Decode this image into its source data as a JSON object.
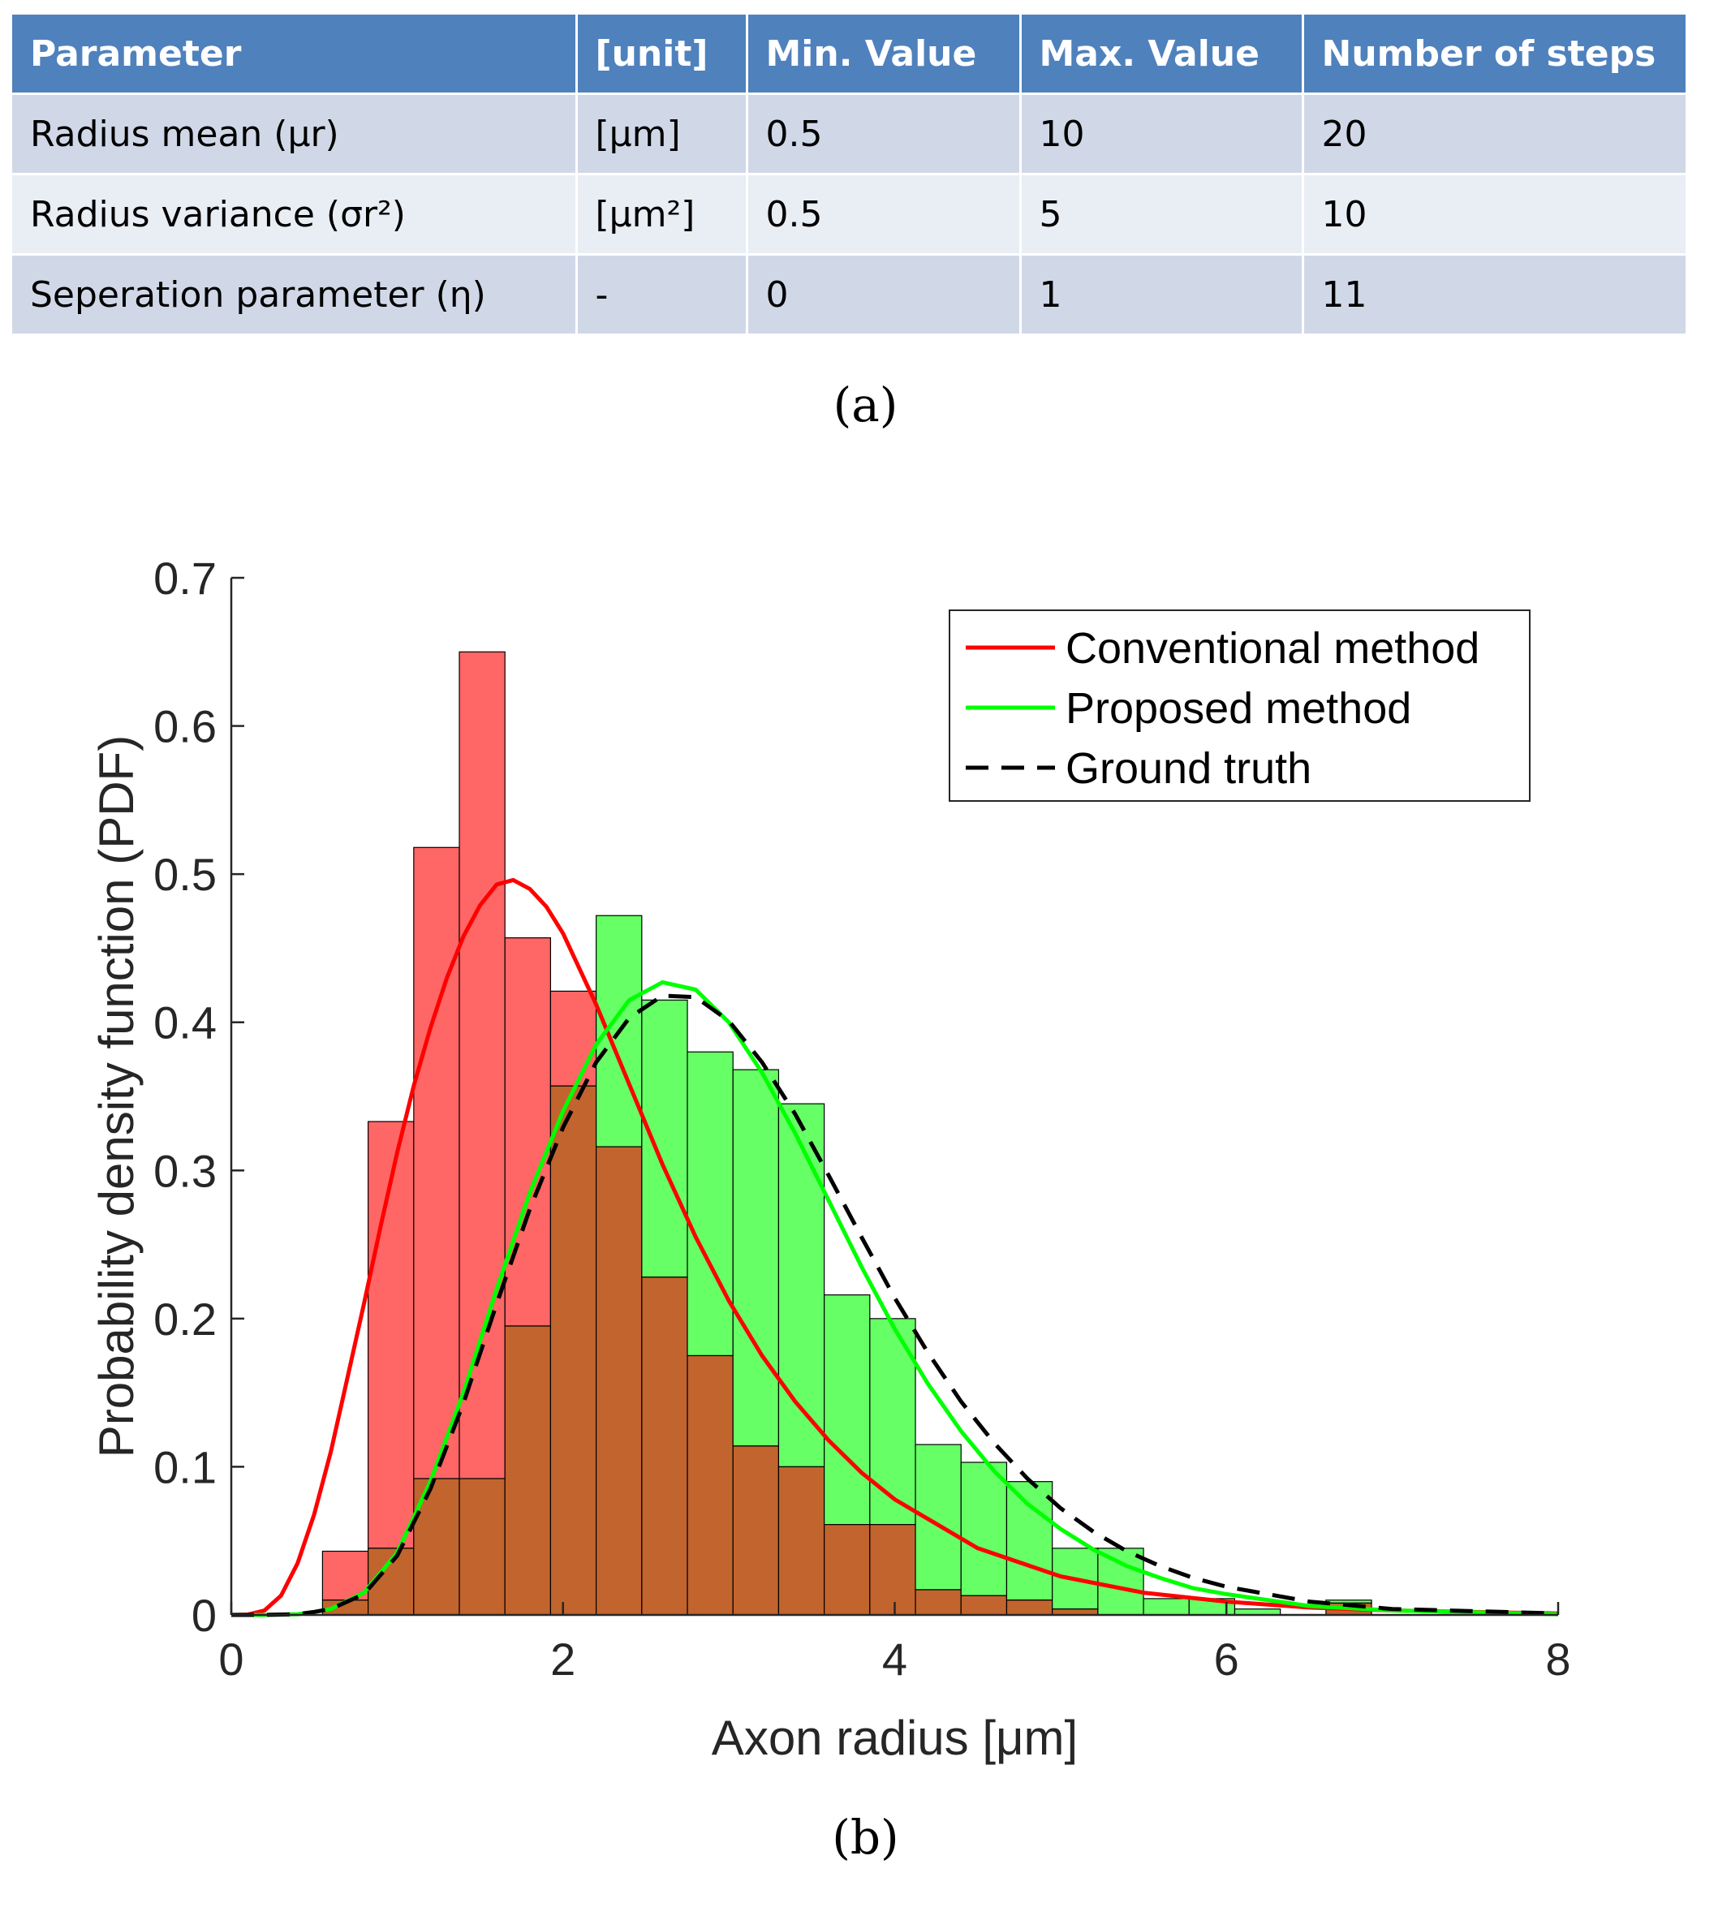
{
  "table": {
    "headers": [
      "Parameter",
      "[unit]",
      "Min. Value",
      "Max. Value",
      "Number of steps"
    ],
    "rows": [
      {
        "parameter": "Radius mean (μr)",
        "unit": "[μm]",
        "min": "0.5",
        "max": "10",
        "steps": "20"
      },
      {
        "parameter": "Radius variance (σr²)",
        "unit": "[μm²]",
        "min": "0.5",
        "max": "5",
        "steps": "10"
      },
      {
        "parameter": "Seperation parameter (η)",
        "unit": "-",
        "min": "0",
        "max": "1",
        "steps": "11"
      }
    ]
  },
  "captions": {
    "a": "(a)",
    "b": "(b)"
  },
  "colors": {
    "table_header": "#4f81bd",
    "conventional": "#ff0000",
    "proposed": "#00ff00",
    "ground_truth": "#000000",
    "red_bars": "#ff6666",
    "green_bars": "#66ff66",
    "overlap_bars": "#c2642e"
  },
  "chart_data": {
    "type": "bar",
    "title": "",
    "xlabel": "Axon radius [μm]",
    "ylabel": "Probability density function (PDF)",
    "xlim": [
      0,
      8
    ],
    "ylim": [
      0,
      0.7
    ],
    "xticks": [
      "0",
      "2",
      "4",
      "6",
      "8"
    ],
    "yticks": [
      "0",
      "0.1",
      "0.2",
      "0.3",
      "0.4",
      "0.5",
      "0.6",
      "0.7"
    ],
    "bin_edges": [
      0.55,
      0.825,
      1.1,
      1.375,
      1.65,
      1.925,
      2.2,
      2.475,
      2.75,
      3.025,
      3.3,
      3.575,
      3.85,
      4.125,
      4.4,
      4.675,
      4.95,
      5.225,
      5.5,
      5.775,
      6.05,
      6.325,
      6.6,
      6.875
    ],
    "histograms": [
      {
        "name": "Conventional method histogram",
        "values": [
          0.043,
          0.333,
          0.518,
          0.65,
          0.457,
          0.421,
          0.316,
          0.228,
          0.175,
          0.114,
          0.1,
          0.061,
          0.061,
          0.017,
          0.013,
          0.01,
          0.004,
          0,
          0,
          0,
          0,
          0,
          0.008
        ]
      },
      {
        "name": "Proposed method histogram",
        "values": [
          0.01,
          0.045,
          0.092,
          0.092,
          0.195,
          0.357,
          0.472,
          0.415,
          0.38,
          0.368,
          0.345,
          0.216,
          0.2,
          0.115,
          0.103,
          0.09,
          0.045,
          0.045,
          0.011,
          0.011,
          0.004,
          0,
          0.01
        ]
      }
    ],
    "series": [
      {
        "name": "Conventional method",
        "type": "lognormal-pdf",
        "peak_x": 1.64,
        "peak_y": 0.497,
        "x": [
          0,
          0.1,
          0.2,
          0.3,
          0.4,
          0.5,
          0.6,
          0.7,
          0.8,
          0.9,
          1.0,
          1.1,
          1.2,
          1.3,
          1.4,
          1.5,
          1.6,
          1.7,
          1.8,
          1.9,
          2.0,
          2.2,
          2.4,
          2.6,
          2.8,
          3.0,
          3.2,
          3.4,
          3.6,
          3.8,
          4.0,
          4.5,
          5.0,
          5.5,
          6.0,
          6.5,
          7.0,
          8.0
        ],
        "values": [
          0,
          0.0002,
          0.003,
          0.013,
          0.035,
          0.068,
          0.11,
          0.16,
          0.21,
          0.262,
          0.312,
          0.357,
          0.396,
          0.43,
          0.458,
          0.479,
          0.493,
          0.496,
          0.49,
          0.478,
          0.46,
          0.412,
          0.358,
          0.304,
          0.255,
          0.212,
          0.175,
          0.144,
          0.118,
          0.096,
          0.078,
          0.045,
          0.026,
          0.015,
          0.009,
          0.005,
          0.003,
          0.001
        ]
      },
      {
        "name": "Proposed method",
        "type": "lognormal-pdf",
        "peak_x": 2.62,
        "peak_y": 0.427,
        "x": [
          0,
          0.2,
          0.4,
          0.5,
          0.6,
          0.8,
          1.0,
          1.2,
          1.4,
          1.6,
          1.8,
          2.0,
          2.2,
          2.4,
          2.6,
          2.8,
          3.0,
          3.2,
          3.4,
          3.6,
          3.8,
          4.0,
          4.2,
          4.4,
          4.6,
          4.8,
          5.0,
          5.2,
          5.4,
          5.6,
          5.8,
          6.0,
          6.5,
          7.0,
          8.0
        ],
        "values": [
          0,
          0,
          0.0005,
          0.002,
          0.004,
          0.015,
          0.042,
          0.09,
          0.15,
          0.22,
          0.285,
          0.34,
          0.385,
          0.415,
          0.427,
          0.422,
          0.4,
          0.366,
          0.325,
          0.28,
          0.235,
          0.193,
          0.156,
          0.124,
          0.097,
          0.075,
          0.058,
          0.044,
          0.033,
          0.025,
          0.018,
          0.014,
          0.006,
          0.003,
          0.0005
        ]
      },
      {
        "name": "Ground truth",
        "type": "lognormal-pdf",
        "peak_x": 2.66,
        "peak_y": 0.418,
        "x": [
          0,
          0.2,
          0.4,
          0.5,
          0.6,
          0.8,
          1.0,
          1.2,
          1.4,
          1.6,
          1.8,
          2.0,
          2.2,
          2.4,
          2.6,
          2.8,
          3.0,
          3.2,
          3.4,
          3.6,
          3.8,
          4.0,
          4.2,
          4.4,
          4.6,
          4.8,
          5.0,
          5.2,
          5.4,
          5.6,
          5.8,
          6.0,
          6.5,
          7.0,
          8.0
        ],
        "values": [
          0,
          0,
          0.0005,
          0.002,
          0.004,
          0.014,
          0.04,
          0.085,
          0.143,
          0.21,
          0.274,
          0.329,
          0.373,
          0.403,
          0.418,
          0.417,
          0.401,
          0.373,
          0.338,
          0.297,
          0.255,
          0.214,
          0.177,
          0.144,
          0.116,
          0.092,
          0.072,
          0.056,
          0.043,
          0.033,
          0.025,
          0.019,
          0.009,
          0.004,
          0.001
        ]
      }
    ],
    "legend": {
      "position": "top-right",
      "entries": [
        "Conventional method",
        "Proposed method",
        "Ground truth"
      ]
    }
  }
}
